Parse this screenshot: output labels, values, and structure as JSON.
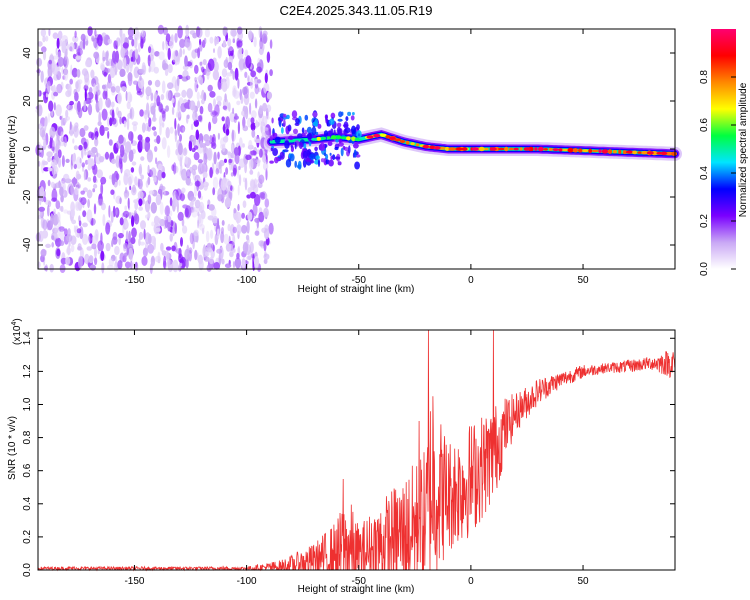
{
  "figure": {
    "title": "C2E4.2025.343.11.05.R19"
  },
  "chart_data": [
    {
      "type": "heatmap",
      "name": "spectrogram",
      "xlabel": "Height of straight line (km)",
      "ylabel": "Frequency (Hz)",
      "xlim": [
        -193,
        91
      ],
      "ylim": [
        -50,
        50
      ],
      "xticks": [
        -150,
        -100,
        -50,
        0,
        50
      ],
      "yticks": [
        -40,
        -20,
        0,
        20,
        40
      ],
      "noise_region_x": [
        -193,
        -89
      ],
      "signal_ridge": [
        {
          "x": -89,
          "f": 3
        },
        {
          "x": -70,
          "f": 4
        },
        {
          "x": -60,
          "f": 5
        },
        {
          "x": -50,
          "f": 4
        },
        {
          "x": -40,
          "f": 6
        },
        {
          "x": -30,
          "f": 3
        },
        {
          "x": -20,
          "f": 1
        },
        {
          "x": -10,
          "f": 0
        },
        {
          "x": 0,
          "f": 0
        },
        {
          "x": 10,
          "f": 0
        },
        {
          "x": 30,
          "f": 0
        },
        {
          "x": 60,
          "f": -1
        },
        {
          "x": 91,
          "f": -2
        }
      ],
      "colorbar": {
        "label": "Normalized spectral amplitude",
        "ticks": [
          0.0,
          0.2,
          0.4,
          0.6,
          0.8
        ],
        "tick_labels": [
          "0.0",
          "0.2",
          "0.4",
          "0.6",
          "0.8"
        ],
        "range": [
          0,
          1
        ],
        "colors": [
          "#ffffff",
          "#c9a8f5",
          "#7a00ff",
          "#0000ff",
          "#00e5ff",
          "#00ff40",
          "#ffff00",
          "#ff8800",
          "#ff0000",
          "#ff0070"
        ]
      }
    },
    {
      "type": "line",
      "name": "snr",
      "xlabel": "Height of straight line (km)",
      "ylabel": "SNR (10 * v/v)",
      "scale_label": "(x10",
      "scale_exponent": "4",
      "scale_suffix": ")",
      "xlim": [
        -193,
        91
      ],
      "ylim": [
        0,
        1.45
      ],
      "xticks": [
        -150,
        -100,
        -50,
        0,
        50
      ],
      "yticks": [
        0.0,
        0.2,
        0.4,
        0.6,
        0.8,
        1.0,
        1.2,
        1.4
      ],
      "ytick_labels": [
        "0.0",
        "0.2",
        "0.4",
        "0.6",
        "0.8",
        "1.0",
        "1.2",
        "1.4"
      ],
      "color": "#ee3030",
      "envelope": {
        "x": [
          -193,
          -150,
          -100,
          -85,
          -80,
          -70,
          -60,
          -55,
          -50,
          -40,
          -30,
          -20,
          -18,
          -10,
          -5,
          0,
          10,
          15,
          20,
          30,
          40,
          50,
          60,
          70,
          80,
          91
        ],
        "base": [
          0.01,
          0.01,
          0.01,
          0.02,
          0.03,
          0.06,
          0.1,
          0.12,
          0.09,
          0.15,
          0.22,
          0.3,
          0.5,
          0.45,
          0.5,
          0.55,
          0.7,
          0.85,
          0.95,
          1.08,
          1.15,
          1.2,
          1.22,
          1.23,
          1.25,
          1.25
        ],
        "amp": [
          0.01,
          0.01,
          0.01,
          0.04,
          0.06,
          0.1,
          0.2,
          0.35,
          0.18,
          0.28,
          0.35,
          0.45,
          0.6,
          0.35,
          0.35,
          0.35,
          0.3,
          0.2,
          0.12,
          0.08,
          0.05,
          0.04,
          0.03,
          0.04,
          0.04,
          0.1
        ]
      },
      "spikes": [
        {
          "x": -19,
          "y": 1.45
        },
        {
          "x": 10,
          "y": 1.45
        },
        {
          "x": -17,
          "y": 1.05
        },
        {
          "x": -23,
          "y": 0.9
        },
        {
          "x": -57,
          "y": 0.55
        }
      ]
    }
  ]
}
